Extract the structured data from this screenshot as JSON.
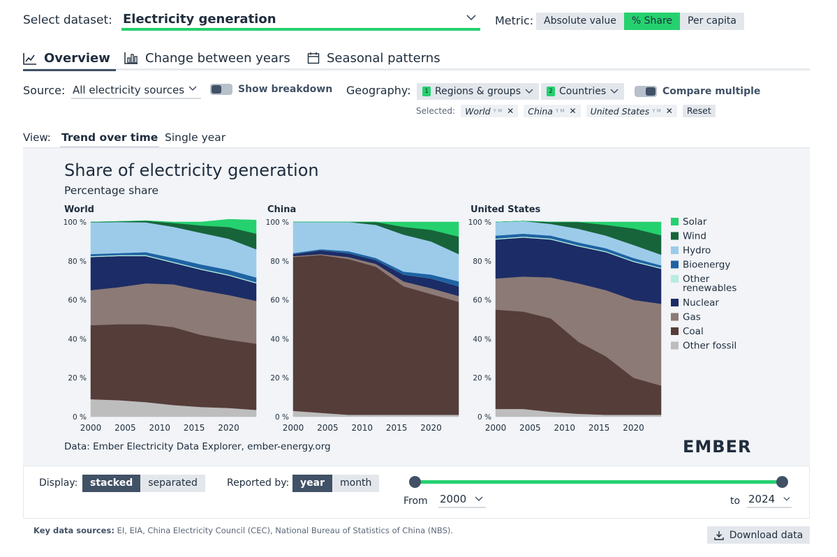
{
  "dataset": {
    "label": "Select dataset:",
    "value": "Electricity generation"
  },
  "metric": {
    "label": "Metric:",
    "options": [
      "Absolute value",
      "% Share",
      "Per capita"
    ],
    "selected": "% Share"
  },
  "tabs": [
    {
      "label": "Overview",
      "icon": "line-chart-icon",
      "active": true
    },
    {
      "label": "Change between years",
      "icon": "bar-chart-icon",
      "active": false
    },
    {
      "label": "Seasonal patterns",
      "icon": "calendar-icon",
      "active": false
    }
  ],
  "source": {
    "label": "Source:",
    "value": "All electricity sources",
    "breakdown_label": "Show breakdown"
  },
  "geography": {
    "label": "Geography:",
    "regions_count": "1",
    "regions_label": "Regions & groups",
    "countries_count": "2",
    "countries_label": "Countries",
    "compare_label": "Compare multiple",
    "selected_label": "Selected:",
    "selected": [
      "World",
      "China",
      "United States"
    ],
    "chip_suffix": "Y M",
    "reset_label": "Reset"
  },
  "view": {
    "label": "View:",
    "options": [
      "Trend over time",
      "Single year"
    ],
    "selected": "Trend over time"
  },
  "chart": {
    "footnote": "Data: Ember Electricity Data Explorer, ember-energy.org",
    "logo": "EMBER"
  },
  "controls": {
    "display_label": "Display:",
    "display_options": [
      "stacked",
      "separated"
    ],
    "display_selected": "stacked",
    "reported_label": "Reported by:",
    "reported_options": [
      "year",
      "month"
    ],
    "reported_selected": "year",
    "from_label": "From",
    "from_value": "2000",
    "to_label": "to",
    "to_value": "2024"
  },
  "key_sources": {
    "label": "Key data sources:",
    "text": "EI, EIA, China Electricity Council (CEC), National Bureau of Statistics of China (NBS)."
  },
  "download_label": "Download data",
  "colors": {
    "accent": "#25d16f",
    "dark": "#415166",
    "Solar": "#25d16f",
    "Wind": "#17643a",
    "Hydro": "#9ccbea",
    "Bioenergy": "#1f63a3",
    "Other renewables": "#b7ece0",
    "Nuclear": "#1c2c66",
    "Gas": "#8c7a76",
    "Coal": "#553d39",
    "Other fossil": "#bdbdbd"
  },
  "chart_data": {
    "type": "area",
    "stacked": true,
    "title": "Share of electricity generation",
    "subtitle": "Percentage share",
    "ylabel": "%",
    "ylim": [
      0,
      100
    ],
    "y_ticks": [
      "100 %",
      "80 %",
      "60 %",
      "40 %",
      "20 %",
      "0 %"
    ],
    "x_ticks": [
      "2000",
      "2005",
      "2010",
      "2015",
      "2020"
    ],
    "x": [
      2000,
      2004,
      2008,
      2012,
      2016,
      2020,
      2024
    ],
    "legend": [
      "Solar",
      "Wind",
      "Hydro",
      "Bioenergy",
      "Other renewables",
      "Nuclear",
      "Gas",
      "Coal",
      "Other fossil"
    ],
    "panels": [
      {
        "name": "World",
        "series": [
          {
            "name": "Other fossil",
            "values": [
              9,
              8.5,
              7.5,
              6,
              5,
              4.5,
              3.5
            ]
          },
          {
            "name": "Coal",
            "values": [
              38,
              39,
              40,
              40,
              37,
              35,
              34
            ]
          },
          {
            "name": "Gas",
            "values": [
              18,
              19,
              21,
              22,
              23,
              23,
              22
            ]
          },
          {
            "name": "Nuclear",
            "values": [
              17,
              16,
              14,
              11,
              10.5,
              10,
              9
            ]
          },
          {
            "name": "Other renewables",
            "values": [
              0.5,
              0.5,
              0.5,
              0.5,
              0.5,
              0.5,
              0.5
            ]
          },
          {
            "name": "Bioenergy",
            "values": [
              1,
              1,
              1.5,
              2,
              2.2,
              2.4,
              2.5
            ]
          },
          {
            "name": "Hydro",
            "values": [
              16.3,
              16,
              15.3,
              16,
              16.2,
              16,
              14.5
            ]
          },
          {
            "name": "Wind",
            "values": [
              0.2,
              0.3,
              0.8,
              2,
              3.8,
              6,
              8
            ]
          },
          {
            "name": "Solar",
            "values": [
              0,
              0,
              0.1,
              0.5,
              1.8,
              4,
              7
            ]
          }
        ]
      },
      {
        "name": "China",
        "series": [
          {
            "name": "Other fossil",
            "values": [
              3,
              2,
              1,
              1,
              1,
              1,
              1
            ]
          },
          {
            "name": "Coal",
            "values": [
              79,
              81,
              80,
              76,
              66,
              62,
              58
            ]
          },
          {
            "name": "Gas",
            "values": [
              0.5,
              0.5,
              1,
              1.5,
              2.5,
              3,
              3
            ]
          },
          {
            "name": "Nuclear",
            "values": [
              1,
              2,
              2,
              2,
              3.5,
              5,
              5
            ]
          },
          {
            "name": "Other renewables",
            "values": [
              0,
              0,
              0,
              0,
              0,
              0,
              0
            ]
          },
          {
            "name": "Bioenergy",
            "values": [
              0.5,
              0.5,
              1,
              1,
              1.5,
              2,
              2.5
            ]
          },
          {
            "name": "Hydro",
            "values": [
              16,
              14,
              15,
              17,
              19,
              17,
              14
            ]
          },
          {
            "name": "Wind",
            "values": [
              0,
              0,
              0,
              1.5,
              4,
              6,
              9
            ]
          },
          {
            "name": "Solar",
            "values": [
              0,
              0,
              0,
              0,
              2.5,
              4,
              7.5
            ]
          }
        ]
      },
      {
        "name": "United States",
        "series": [
          {
            "name": "Other fossil",
            "values": [
              4,
              4,
              2.5,
              1.5,
              1,
              1,
              1
            ]
          },
          {
            "name": "Coal",
            "values": [
              51,
              50,
              48,
              37,
              30,
              19,
              15
            ]
          },
          {
            "name": "Gas",
            "values": [
              16,
              18,
              21,
              30,
              34,
              40,
              42
            ]
          },
          {
            "name": "Nuclear",
            "values": [
              20,
              20,
              19.5,
              19,
              19.5,
              19.5,
              18
            ]
          },
          {
            "name": "Other renewables",
            "values": [
              0.5,
              0.5,
              0.5,
              0.5,
              0.5,
              0.5,
              0.5
            ]
          },
          {
            "name": "Bioenergy",
            "values": [
              1.5,
              1.5,
              1.5,
              1.5,
              1.5,
              1.5,
              1.2
            ]
          },
          {
            "name": "Hydro",
            "values": [
              7,
              6.5,
              6,
              7,
              6.5,
              6.7,
              5.5
            ]
          },
          {
            "name": "Wind",
            "values": [
              0,
              0,
              1,
              3.5,
              5.5,
              8.5,
              10
            ]
          },
          {
            "name": "Solar",
            "values": [
              0,
              0,
              0,
              0,
              1.5,
              3.3,
              6.8
            ]
          }
        ]
      }
    ]
  }
}
